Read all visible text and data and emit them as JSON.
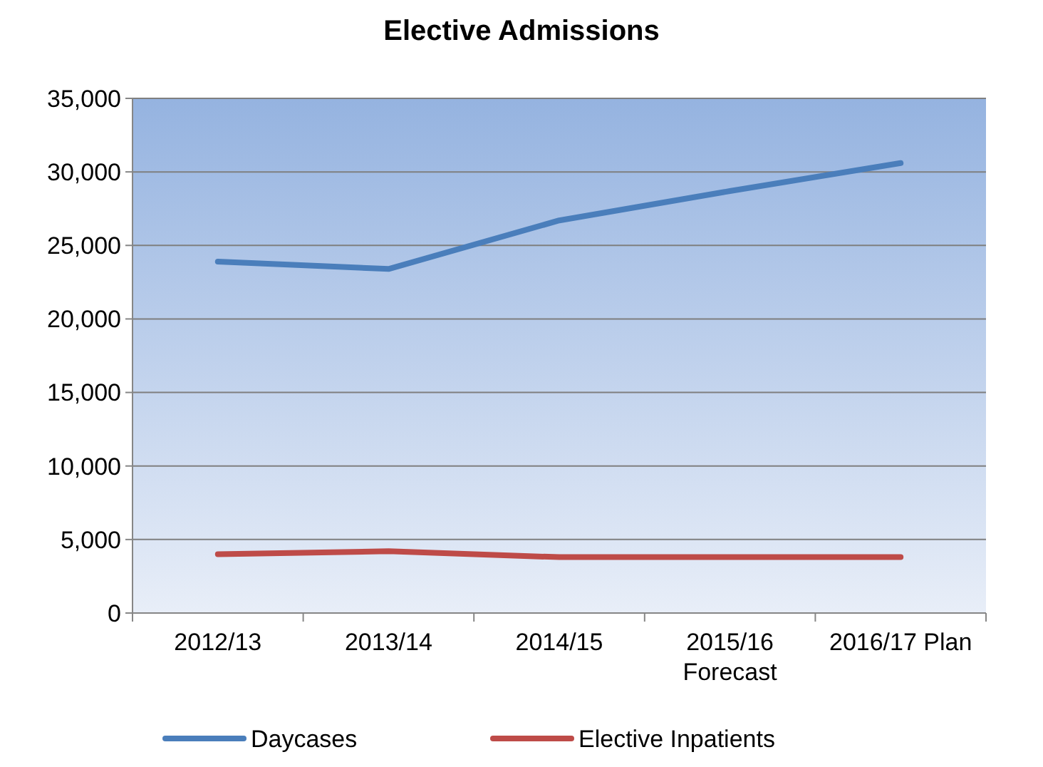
{
  "chart_data": {
    "type": "line",
    "title": "Elective Admissions",
    "categories": [
      "2012/13",
      "2013/14",
      "2014/15",
      "2015/16\nForecast",
      "2016/17 Plan"
    ],
    "series": [
      {
        "name": "Daycases",
        "color": "#4a7ebb",
        "values": [
          23900,
          23400,
          26700,
          28700,
          30600
        ]
      },
      {
        "name": "Elective Inpatients",
        "color": "#be4b48",
        "values": [
          4000,
          4200,
          3800,
          3800,
          3800
        ]
      }
    ],
    "ylim": [
      0,
      35000
    ],
    "yticks": [
      {
        "value": 0,
        "label": "0"
      },
      {
        "value": 5000,
        "label": "5,000"
      },
      {
        "value": 10000,
        "label": "10,000"
      },
      {
        "value": 15000,
        "label": "15,000"
      },
      {
        "value": 20000,
        "label": "20,000"
      },
      {
        "value": 25000,
        "label": "25,000"
      },
      {
        "value": 30000,
        "label": "30,000"
      },
      {
        "value": 35000,
        "label": "35,000"
      }
    ],
    "grid": "y",
    "legend": "bottom",
    "marker": "none",
    "line_style": "solid"
  }
}
